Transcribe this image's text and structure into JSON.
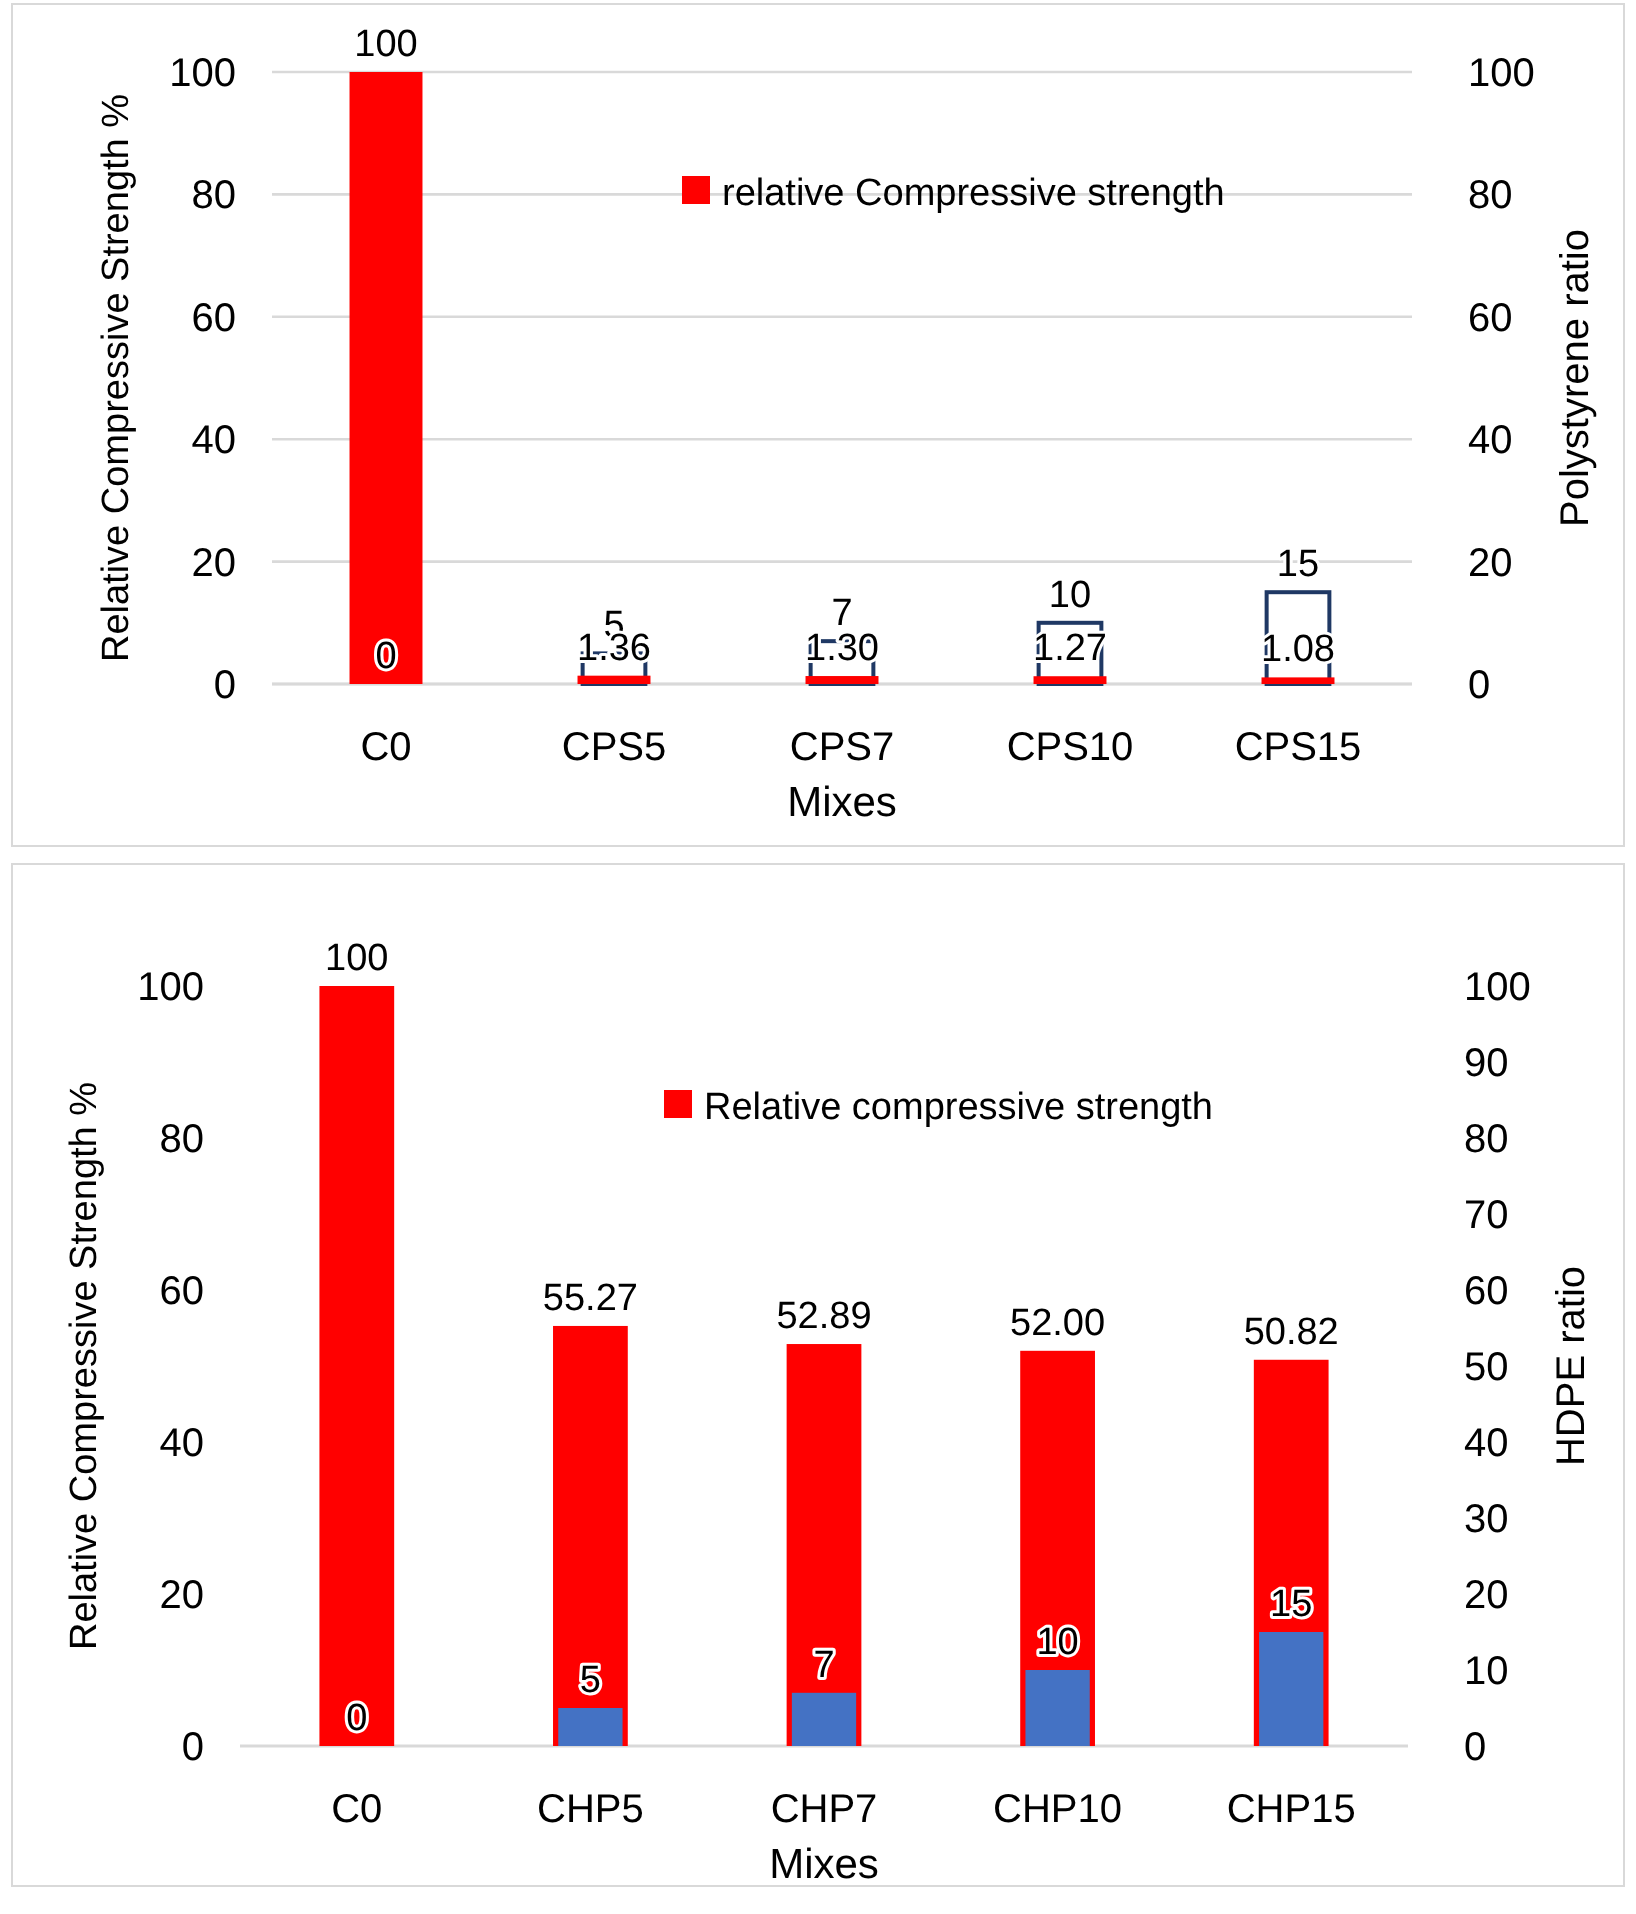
{
  "chart_data": [
    {
      "type": "bar",
      "xlabel": "Mixes",
      "ylabel": "Relative Compressive Strength %",
      "y2label": "Polystyrene ratio",
      "categories": [
        "C0",
        "CPS5",
        "CPS7",
        "CPS10",
        "CPS15"
      ],
      "ylim": [
        0,
        100
      ],
      "yticks": [
        0,
        20,
        40,
        60,
        80,
        100
      ],
      "y2lim": [
        0,
        100
      ],
      "y2ticks": [
        0,
        20,
        40,
        60,
        80,
        100
      ],
      "grid": "y",
      "legend": "top",
      "series": [
        {
          "color": "#1f3864",
          "line_style": "solid",
          "axis": "y2",
          "values": [
            0,
            5,
            7,
            10,
            15
          ],
          "value_labels": [
            "0",
            "5",
            "7",
            "10",
            "15"
          ]
        },
        {
          "name": "relative Compressive strength",
          "color": "#ff0000",
          "values": [
            100,
            1.36,
            1.3,
            1.27,
            1.08
          ],
          "value_labels": [
            "100",
            "1.36",
            "1.30",
            "1.27",
            "1.08"
          ]
        }
      ]
    },
    {
      "type": "bar",
      "xlabel": "Mixes",
      "ylabel": "Relative Compressive Strength %",
      "y2label": "HDPE ratio",
      "categories": [
        "C0",
        "CHP5",
        "CHP7",
        "CHP10",
        "CHP15"
      ],
      "ylim": [
        0,
        100
      ],
      "yticks": [
        0,
        20,
        40,
        60,
        80,
        100
      ],
      "y2lim": [
        0,
        100
      ],
      "y2ticks": [
        0,
        10,
        20,
        30,
        40,
        50,
        60,
        70,
        80,
        90,
        100
      ],
      "grid": false,
      "legend": "top",
      "series": [
        {
          "name": "Relative compressive strength",
          "color": "#ff0000",
          "values": [
            100,
            55.27,
            52.89,
            52.0,
            50.82
          ],
          "value_labels": [
            "100",
            "55.27",
            "52.89",
            "52.00",
            "50.82"
          ]
        },
        {
          "color": "#4472c4",
          "axis": "y2",
          "values": [
            0,
            5,
            7,
            10,
            15
          ],
          "value_labels": [
            "0",
            "5",
            "7",
            "10",
            "15"
          ]
        }
      ]
    }
  ]
}
